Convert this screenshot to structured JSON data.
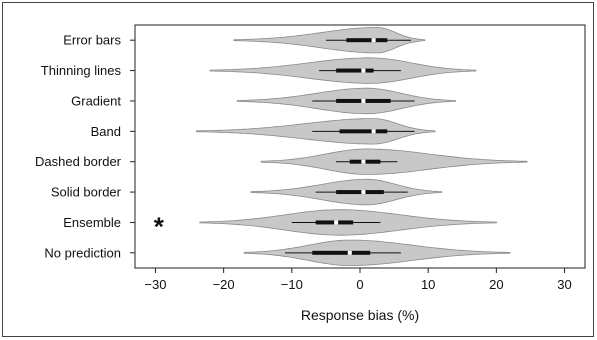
{
  "chart_data": {
    "type": "violin",
    "xlabel": "Response bias (%)",
    "xlim": [
      -33,
      33
    ],
    "xticks": [
      -30,
      -20,
      -10,
      0,
      10,
      20,
      30
    ],
    "grid": false,
    "annotation": "*",
    "annotated_category": "Ensemble",
    "colors": {
      "violin": "#c8c8c8",
      "violin_edge": "#8a8a8a",
      "box": "#111111",
      "median": "#ffffff",
      "whisker": "#555555"
    },
    "categories": [
      "Error bars",
      "Thinning lines",
      "Gradient",
      "Band",
      "Dashed border",
      "Solid border",
      "Ensemble",
      "No prediction"
    ],
    "violins": [
      {
        "name": "Error bars",
        "min": -18.5,
        "q1": -2.0,
        "median": 2.0,
        "q3": 4.0,
        "whisker_low": -5.0,
        "whisker_high": 7.5,
        "max": 9.5,
        "peak": 2.5
      },
      {
        "name": "Thinning lines",
        "min": -22.0,
        "q1": -3.5,
        "median": 0.5,
        "q3": 2.0,
        "whisker_low": -6.0,
        "whisker_high": 6.0,
        "max": 17.0,
        "peak": 1.5
      },
      {
        "name": "Gradient",
        "min": -18.0,
        "q1": -3.5,
        "median": 0.5,
        "q3": 4.5,
        "whisker_low": -7.0,
        "whisker_high": 8.0,
        "max": 14.0,
        "peak": 1.0
      },
      {
        "name": "Band",
        "min": -24.0,
        "q1": -3.0,
        "median": 2.0,
        "q3": 4.0,
        "whisker_low": -7.0,
        "whisker_high": 8.0,
        "max": 11.0,
        "peak": 2.0
      },
      {
        "name": "Dashed border",
        "min": -14.5,
        "q1": -1.5,
        "median": 0.5,
        "q3": 3.0,
        "whisker_low": -3.5,
        "whisker_high": 5.5,
        "max": 24.5,
        "peak": 1.0
      },
      {
        "name": "Solid border",
        "min": -16.0,
        "q1": -3.5,
        "median": 0.5,
        "q3": 3.5,
        "whisker_low": -6.5,
        "whisker_high": 7.0,
        "max": 12.0,
        "peak": 1.0
      },
      {
        "name": "Ensemble",
        "min": -23.5,
        "q1": -6.5,
        "median": -3.5,
        "q3": -1.0,
        "whisker_low": -10.0,
        "whisker_high": 3.0,
        "max": 20.0,
        "peak": -3.0
      },
      {
        "name": "No prediction",
        "min": -17.0,
        "q1": -7.0,
        "median": -1.5,
        "q3": 1.5,
        "whisker_low": -11.0,
        "whisker_high": 6.0,
        "max": 22.0,
        "peak": -1.5
      }
    ]
  }
}
